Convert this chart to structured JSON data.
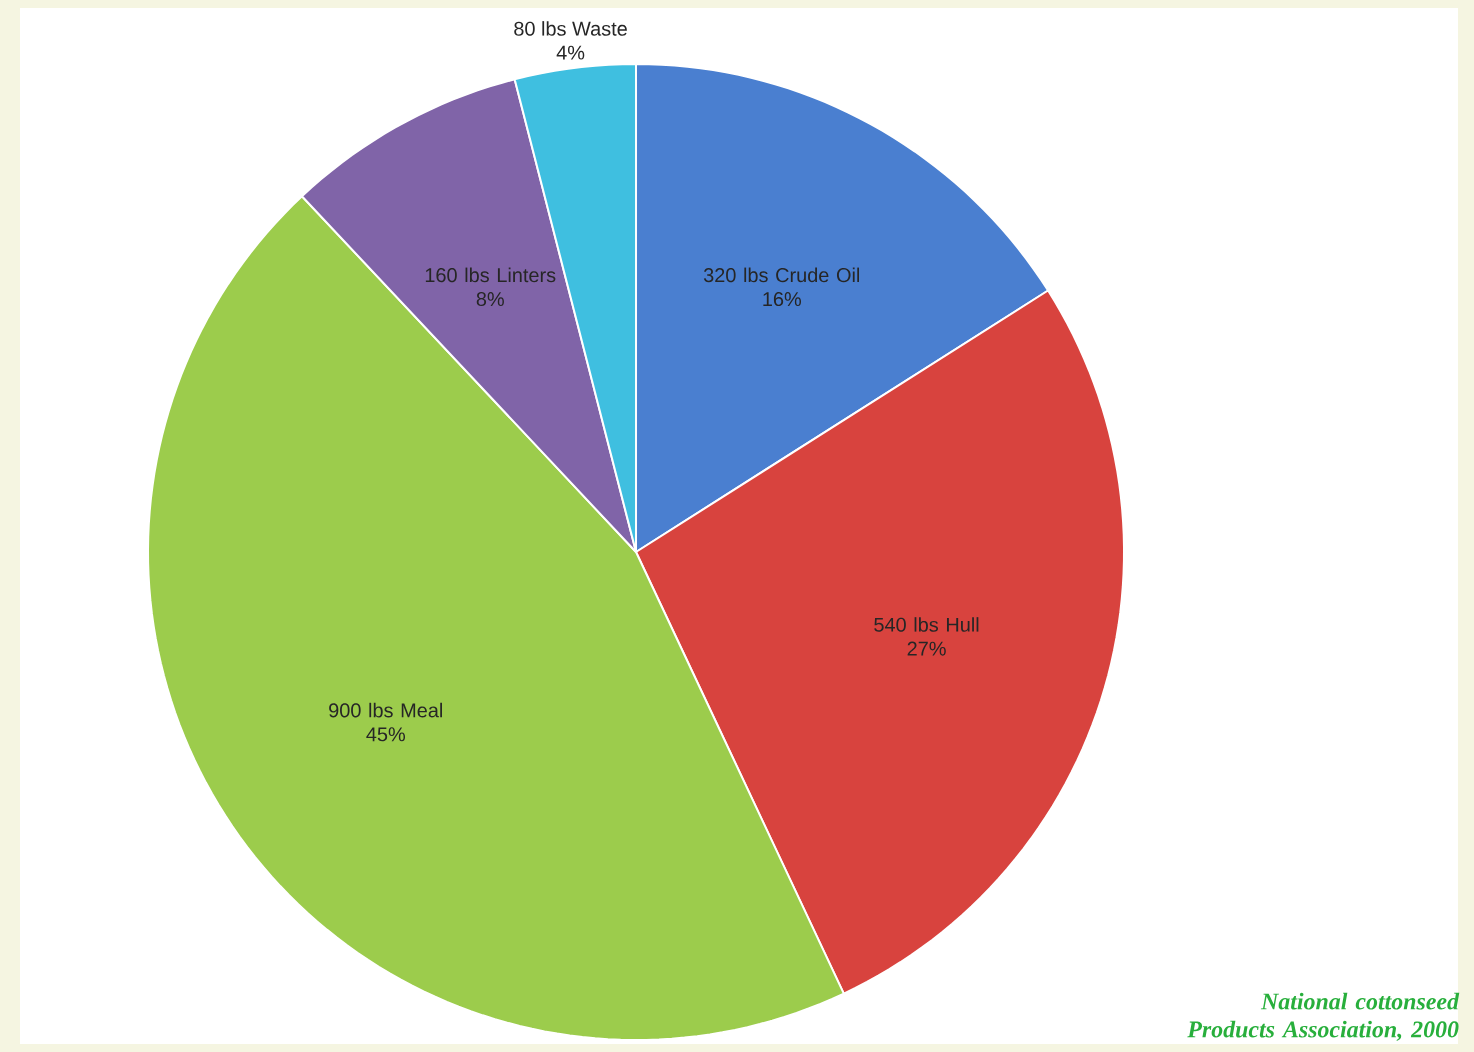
{
  "chart_data": {
    "type": "pie",
    "categories": [
      "320 lbs Crude Oil",
      "540 lbs Hull",
      "900 lbs Meal",
      "160 lbs Linters",
      "80 lbs Waste"
    ],
    "values": [
      16,
      27,
      45,
      8,
      4
    ],
    "value_labels": [
      "16%",
      "27%",
      "45%",
      "8%",
      "4%"
    ],
    "colors": [
      "#4a7fd0",
      "#d8433e",
      "#9ccc4c",
      "#8064a8",
      "#3fbfe0"
    ],
    "annotations": [
      "National cottonseed Products Association, 2000"
    ]
  }
}
